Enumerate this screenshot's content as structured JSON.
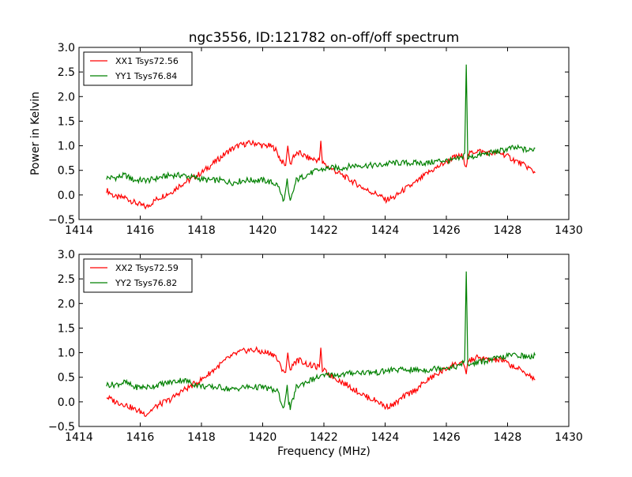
{
  "figure": {
    "title": "ngc3556, ID:121782 on-off/off spectrum"
  },
  "chart_data": [
    {
      "type": "line",
      "title": "ngc3556, ID:121782 on-off/off spectrum",
      "xlabel": "",
      "ylabel": "Power in Kelvin",
      "xlim": [
        1414,
        1430
      ],
      "ylim": [
        -0.5,
        3.0
      ],
      "xticks": [
        "1414",
        "1416",
        "1418",
        "1420",
        "1422",
        "1424",
        "1426",
        "1428",
        "1430"
      ],
      "yticks": [
        "−0.5",
        "0.0",
        "0.5",
        "1.0",
        "1.5",
        "2.0",
        "2.5",
        "3.0"
      ],
      "grid": false,
      "legend_position": "upper-left",
      "series": [
        {
          "name": "XX1 Tsys72.56",
          "color": "#ff0000",
          "x": [
            1414.9,
            1415.2,
            1415.5,
            1415.8,
            1416.0,
            1416.2,
            1416.5,
            1416.8,
            1417.0,
            1417.3,
            1417.6,
            1418.0,
            1418.3,
            1418.6,
            1418.9,
            1419.2,
            1419.5,
            1419.8,
            1420.0,
            1420.2,
            1420.4,
            1420.6,
            1420.75,
            1420.82,
            1420.9,
            1421.0,
            1421.2,
            1421.5,
            1421.85,
            1421.9,
            1421.95,
            1422.2,
            1422.6,
            1423.0,
            1423.4,
            1423.8,
            1424.0,
            1424.3,
            1424.6,
            1425.0,
            1425.4,
            1425.8,
            1426.2,
            1426.5,
            1426.65,
            1426.7,
            1426.8,
            1427.0,
            1427.4,
            1427.8,
            1428.1,
            1428.4,
            1428.7,
            1428.9
          ],
          "y": [
            0.1,
            -0.05,
            -0.05,
            -0.15,
            -0.2,
            -0.25,
            -0.1,
            0.0,
            0.05,
            0.2,
            0.3,
            0.45,
            0.6,
            0.75,
            0.9,
            1.0,
            1.05,
            1.05,
            1.0,
            1.0,
            0.95,
            0.7,
            0.6,
            1.0,
            0.6,
            0.8,
            0.85,
            0.75,
            0.7,
            1.1,
            0.65,
            0.55,
            0.4,
            0.25,
            0.1,
            0.0,
            -0.1,
            -0.05,
            0.1,
            0.25,
            0.45,
            0.6,
            0.75,
            0.8,
            0.6,
            0.8,
            0.85,
            0.9,
            0.85,
            0.85,
            0.75,
            0.65,
            0.55,
            0.45
          ]
        },
        {
          "name": "YY1 Tsys76.84",
          "color": "#008000",
          "x": [
            1414.9,
            1415.2,
            1415.5,
            1415.8,
            1416.0,
            1416.3,
            1416.6,
            1417.0,
            1417.4,
            1417.8,
            1418.2,
            1418.6,
            1419.0,
            1419.4,
            1419.8,
            1420.0,
            1420.3,
            1420.5,
            1420.6,
            1420.7,
            1420.8,
            1420.85,
            1420.9,
            1421.1,
            1421.4,
            1421.8,
            1422.2,
            1422.6,
            1423.0,
            1423.4,
            1423.8,
            1424.2,
            1424.6,
            1425.0,
            1425.4,
            1425.8,
            1426.2,
            1426.5,
            1426.6,
            1426.65,
            1426.7,
            1427.0,
            1427.4,
            1427.8,
            1428.1,
            1428.4,
            1428.7,
            1428.9
          ],
          "y": [
            0.35,
            0.35,
            0.4,
            0.3,
            0.3,
            0.3,
            0.35,
            0.4,
            0.4,
            0.35,
            0.3,
            0.3,
            0.25,
            0.3,
            0.3,
            0.3,
            0.25,
            0.2,
            0.0,
            -0.1,
            0.3,
            0.0,
            -0.15,
            0.3,
            0.4,
            0.5,
            0.55,
            0.55,
            0.6,
            0.6,
            0.6,
            0.65,
            0.65,
            0.65,
            0.65,
            0.7,
            0.7,
            0.75,
            0.85,
            2.65,
            0.75,
            0.8,
            0.85,
            0.9,
            0.95,
            0.95,
            0.9,
            0.95
          ]
        }
      ]
    },
    {
      "type": "line",
      "title": "",
      "xlabel": "Frequency (MHz)",
      "ylabel": "",
      "xlim": [
        1414,
        1430
      ],
      "ylim": [
        -0.5,
        3.0
      ],
      "xticks": [
        "1414",
        "1416",
        "1418",
        "1420",
        "1422",
        "1424",
        "1426",
        "1428",
        "1430"
      ],
      "yticks": [
        "−0.5",
        "0.0",
        "0.5",
        "1.0",
        "1.5",
        "2.0",
        "2.5",
        "3.0"
      ],
      "grid": false,
      "legend_position": "upper-left",
      "series": [
        {
          "name": "XX2 Tsys72.59",
          "color": "#ff0000",
          "x": [
            1414.9,
            1415.2,
            1415.5,
            1415.8,
            1416.0,
            1416.2,
            1416.5,
            1416.8,
            1417.0,
            1417.3,
            1417.6,
            1418.0,
            1418.3,
            1418.6,
            1418.9,
            1419.2,
            1419.5,
            1419.8,
            1420.0,
            1420.2,
            1420.4,
            1420.6,
            1420.75,
            1420.82,
            1420.9,
            1421.0,
            1421.2,
            1421.5,
            1421.85,
            1421.9,
            1421.95,
            1422.2,
            1422.6,
            1423.0,
            1423.4,
            1423.8,
            1424.0,
            1424.3,
            1424.6,
            1425.0,
            1425.4,
            1425.8,
            1426.2,
            1426.5,
            1426.65,
            1426.7,
            1426.8,
            1427.0,
            1427.4,
            1427.8,
            1428.1,
            1428.4,
            1428.7,
            1428.9
          ],
          "y": [
            0.1,
            0.0,
            -0.05,
            -0.15,
            -0.2,
            -0.25,
            -0.1,
            0.0,
            0.05,
            0.2,
            0.3,
            0.45,
            0.6,
            0.75,
            0.9,
            1.0,
            1.05,
            1.05,
            1.0,
            1.0,
            0.95,
            0.7,
            0.6,
            1.0,
            0.6,
            0.8,
            0.85,
            0.75,
            0.7,
            1.1,
            0.65,
            0.55,
            0.4,
            0.25,
            0.1,
            0.0,
            -0.1,
            -0.05,
            0.1,
            0.25,
            0.45,
            0.6,
            0.75,
            0.8,
            0.6,
            0.8,
            0.85,
            0.9,
            0.85,
            0.85,
            0.75,
            0.65,
            0.55,
            0.45
          ]
        },
        {
          "name": "YY2 Tsys76.82",
          "color": "#008000",
          "x": [
            1414.9,
            1415.2,
            1415.5,
            1415.8,
            1416.0,
            1416.3,
            1416.6,
            1417.0,
            1417.4,
            1417.8,
            1418.2,
            1418.6,
            1419.0,
            1419.4,
            1419.8,
            1420.0,
            1420.3,
            1420.5,
            1420.6,
            1420.7,
            1420.8,
            1420.85,
            1420.9,
            1421.1,
            1421.4,
            1421.8,
            1422.2,
            1422.6,
            1423.0,
            1423.4,
            1423.8,
            1424.2,
            1424.6,
            1425.0,
            1425.4,
            1425.8,
            1426.2,
            1426.5,
            1426.6,
            1426.65,
            1426.7,
            1427.0,
            1427.4,
            1427.8,
            1428.1,
            1428.4,
            1428.7,
            1428.9
          ],
          "y": [
            0.35,
            0.35,
            0.4,
            0.3,
            0.3,
            0.3,
            0.35,
            0.4,
            0.45,
            0.35,
            0.3,
            0.3,
            0.25,
            0.3,
            0.3,
            0.3,
            0.25,
            0.2,
            0.0,
            -0.1,
            0.3,
            0.0,
            -0.15,
            0.3,
            0.4,
            0.5,
            0.55,
            0.55,
            0.6,
            0.6,
            0.6,
            0.65,
            0.65,
            0.65,
            0.65,
            0.7,
            0.7,
            0.75,
            0.85,
            2.65,
            0.75,
            0.8,
            0.85,
            0.9,
            0.95,
            0.95,
            0.9,
            0.95
          ]
        }
      ]
    }
  ]
}
